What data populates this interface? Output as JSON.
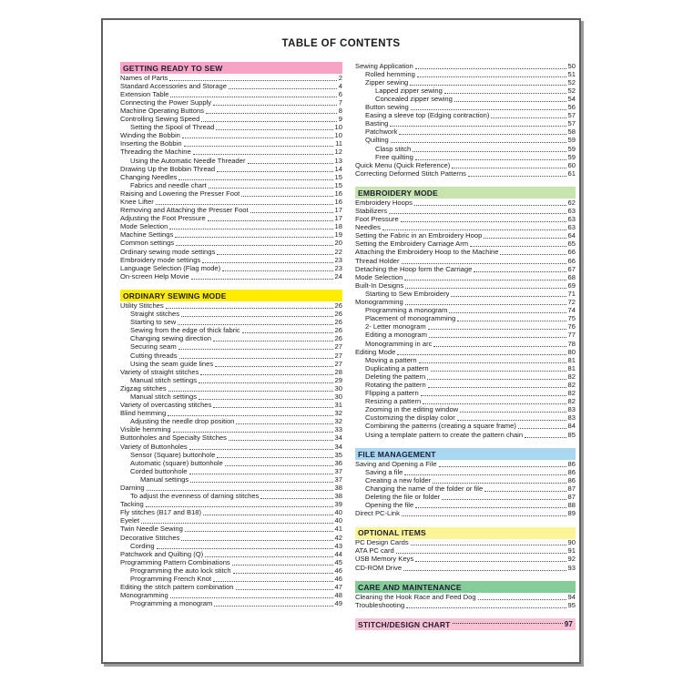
{
  "document": {
    "title": "TABLE OF CONTENTS"
  },
  "toc": {
    "columns": [
      {
        "name": "left",
        "blocks": [
          {
            "header": {
              "label": "GETTING READY TO SEW",
              "color": "#f6a3c4",
              "page": null
            },
            "items": [
              {
                "indent": 0,
                "label": "Names of Parts",
                "page": "2"
              },
              {
                "indent": 0,
                "label": "Standard Accessories and Storage",
                "page": "4"
              },
              {
                "indent": 0,
                "label": "Extension Table",
                "page": "6"
              },
              {
                "indent": 0,
                "label": "Connecting the Power Supply",
                "page": "7"
              },
              {
                "indent": 0,
                "label": "Machine Operating Buttons",
                "page": "8"
              },
              {
                "indent": 0,
                "label": "Controlling Sewing Speed",
                "page": "9"
              },
              {
                "indent": 1,
                "label": "Setting the Spool of Thread",
                "page": "10"
              },
              {
                "indent": 0,
                "label": "Winding the Bobbin",
                "page": "10"
              },
              {
                "indent": 0,
                "label": "Inserting the Bobbin",
                "page": "11"
              },
              {
                "indent": 0,
                "label": "Threading the Machine",
                "page": "12"
              },
              {
                "indent": 1,
                "label": "Using the Automatic Needle Threader",
                "page": "13"
              },
              {
                "indent": 0,
                "label": "Drawing Up the Bobbin Thread",
                "page": "14"
              },
              {
                "indent": 0,
                "label": "Changing Needles",
                "page": "15"
              },
              {
                "indent": 1,
                "label": "Fabrics and needle chart",
                "page": "15"
              },
              {
                "indent": 0,
                "label": "Raising and Lowering the Presser Foot",
                "page": "16"
              },
              {
                "indent": 0,
                "label": "Knee Lifter",
                "page": "16"
              },
              {
                "indent": 0,
                "label": "Removing and Attaching the Presser Foot",
                "page": "17"
              },
              {
                "indent": 0,
                "label": "Adjusting the Foot Pressure",
                "page": "17"
              },
              {
                "indent": 0,
                "label": "Mode Selection",
                "page": "18"
              },
              {
                "indent": 0,
                "label": "Machine Settings",
                "page": "19"
              },
              {
                "indent": 0,
                "label": "Common settings",
                "page": "20"
              },
              {
                "indent": 0,
                "label": "Ordinary sewing mode settings",
                "page": "22"
              },
              {
                "indent": 0,
                "label": "Embroidery mode settings",
                "page": "23"
              },
              {
                "indent": 0,
                "label": "Language Selection (Flag mode)",
                "page": "23"
              },
              {
                "indent": 0,
                "label": "On-screen Help Movie",
                "page": "24"
              }
            ]
          },
          {
            "header": {
              "label": "ORDINARY SEWING MODE",
              "color": "#ffec00",
              "page": null
            },
            "items": [
              {
                "indent": 0,
                "label": "Utility Stitches",
                "page": "26"
              },
              {
                "indent": 1,
                "label": "Straight stitches",
                "page": "26"
              },
              {
                "indent": 1,
                "label": "Starting to sew",
                "page": "26"
              },
              {
                "indent": 1,
                "label": "Sewing from the edge of thick fabric",
                "page": "26"
              },
              {
                "indent": 1,
                "label": "Changing sewing direction",
                "page": "26"
              },
              {
                "indent": 1,
                "label": "Securing seam",
                "page": "27"
              },
              {
                "indent": 1,
                "label": "Cutting threads",
                "page": "27"
              },
              {
                "indent": 1,
                "label": "Using the seam guide lines",
                "page": "27"
              },
              {
                "indent": 0,
                "label": "Variety of straight stitches",
                "page": "28"
              },
              {
                "indent": 1,
                "label": "Manual stitch settings",
                "page": "29"
              },
              {
                "indent": 0,
                "label": "Zigzag stitches",
                "page": "30"
              },
              {
                "indent": 1,
                "label": "Manual stitch settings",
                "page": "30"
              },
              {
                "indent": 0,
                "label": "Variety of overcasting stitches",
                "page": "31"
              },
              {
                "indent": 0,
                "label": "Blind hemming",
                "page": "32"
              },
              {
                "indent": 1,
                "label": "Adjusting the needle drop position",
                "page": "32"
              },
              {
                "indent": 0,
                "label": "Visible hemming",
                "page": "33"
              },
              {
                "indent": 0,
                "label": "Buttonholes and Specialty Stitches",
                "page": "34"
              },
              {
                "indent": 0,
                "label": "Variety of Buttonholes",
                "page": "34"
              },
              {
                "indent": 1,
                "label": "Sensor (Square) buttonhole",
                "page": "35"
              },
              {
                "indent": 1,
                "label": "Automatic (square) buttonhole",
                "page": "36"
              },
              {
                "indent": 1,
                "label": "Corded buttonhole",
                "page": "37"
              },
              {
                "indent": 2,
                "label": "Manual settings",
                "page": "37"
              },
              {
                "indent": 0,
                "label": "Darning",
                "page": "38"
              },
              {
                "indent": 1,
                "label": "To adjust the evenness of darning stitches",
                "page": "38"
              },
              {
                "indent": 0,
                "label": "Tacking",
                "page": "39"
              },
              {
                "indent": 0,
                "label": "Fly stitches (B17 and B18)",
                "page": "40"
              },
              {
                "indent": 0,
                "label": "Eyelet",
                "page": "40"
              },
              {
                "indent": 0,
                "label": "Twin Needle Sewing",
                "page": "41"
              },
              {
                "indent": 0,
                "label": "Decorative Stitches",
                "page": "42"
              },
              {
                "indent": 1,
                "label": "Cording",
                "page": "43"
              },
              {
                "indent": 0,
                "label": "Patchwork and Quilting (Q)",
                "page": "44"
              },
              {
                "indent": 0,
                "label": "Programming Pattern Combinations",
                "page": "45"
              },
              {
                "indent": 1,
                "label": "Programming the auto lock stitch",
                "page": "46"
              },
              {
                "indent": 1,
                "label": "Programming French Knot",
                "page": "46"
              },
              {
                "indent": 0,
                "label": "Editing the stitch pattern combination",
                "page": "47"
              },
              {
                "indent": 0,
                "label": "Monogramming",
                "page": "48"
              },
              {
                "indent": 1,
                "label": "Programming a monogram",
                "page": "49"
              }
            ]
          }
        ]
      },
      {
        "name": "right",
        "blocks": [
          {
            "header": null,
            "items": [
              {
                "indent": 0,
                "label": "Sewing Application",
                "page": "50"
              },
              {
                "indent": 1,
                "label": "Rolled hemming",
                "page": "51"
              },
              {
                "indent": 1,
                "label": "Zipper sewing",
                "page": "52"
              },
              {
                "indent": 2,
                "label": "Lapped zipper sewing",
                "page": "52"
              },
              {
                "indent": 2,
                "label": "Concealed zipper sewing",
                "page": "54"
              },
              {
                "indent": 1,
                "label": "Button sewing",
                "page": "56"
              },
              {
                "indent": 1,
                "label": "Easing a sleeve top (Edging contraction)",
                "page": "57"
              },
              {
                "indent": 1,
                "label": "Basting",
                "page": "57"
              },
              {
                "indent": 1,
                "label": "Patchwork",
                "page": "58"
              },
              {
                "indent": 1,
                "label": "Quilting",
                "page": "59"
              },
              {
                "indent": 2,
                "label": "Clasp stitch",
                "page": "59"
              },
              {
                "indent": 2,
                "label": "Free quilting",
                "page": "59"
              },
              {
                "indent": 0,
                "label": "Quick Menu (Quick Reference)",
                "page": "60"
              },
              {
                "indent": 0,
                "label": "Correcting Deformed Stitch Patterns",
                "page": "61"
              }
            ]
          },
          {
            "header": {
              "label": "EMBROIDERY MODE",
              "color": "#c7e4ae",
              "page": null
            },
            "items": [
              {
                "indent": 0,
                "label": "Embroidery Hoops",
                "page": "62"
              },
              {
                "indent": 0,
                "label": "Stabilizers",
                "page": "63"
              },
              {
                "indent": 0,
                "label": "Foot Pressure",
                "page": "63"
              },
              {
                "indent": 0,
                "label": "Needles",
                "page": "63"
              },
              {
                "indent": 0,
                "label": "Setting the Fabric in an Embroidery Hoop",
                "page": "64"
              },
              {
                "indent": 0,
                "label": "Setting the Embroidery Carriage Arm",
                "page": "65"
              },
              {
                "indent": 0,
                "label": "Attaching the Embroidery Hoop to the Machine",
                "page": "66"
              },
              {
                "indent": 0,
                "label": "Thread Holder",
                "page": "66"
              },
              {
                "indent": 0,
                "label": "Detaching the Hoop form the Carriage",
                "page": "67"
              },
              {
                "indent": 0,
                "label": "Mode Selection",
                "page": "68"
              },
              {
                "indent": 0,
                "label": "Built-In Designs",
                "page": "69"
              },
              {
                "indent": 1,
                "label": "Starting to Sew Embroidery",
                "page": "71"
              },
              {
                "indent": 0,
                "label": "Monogramming",
                "page": "72"
              },
              {
                "indent": 1,
                "label": "Programming a monogram",
                "page": "74"
              },
              {
                "indent": 1,
                "label": "Placement of monogramming",
                "page": "75"
              },
              {
                "indent": 1,
                "label": "2- Letter monogram",
                "page": "76"
              },
              {
                "indent": 1,
                "label": "Editing a monogram",
                "page": "77"
              },
              {
                "indent": 1,
                "label": "Monogramming in arc",
                "page": "78"
              },
              {
                "indent": 0,
                "label": "Editing Mode",
                "page": "80"
              },
              {
                "indent": 1,
                "label": "Moving a pattern",
                "page": "81"
              },
              {
                "indent": 1,
                "label": "Duplicating a pattern",
                "page": "81"
              },
              {
                "indent": 1,
                "label": "Deleting the pattern",
                "page": "82"
              },
              {
                "indent": 1,
                "label": "Rotating the pattern",
                "page": "82"
              },
              {
                "indent": 1,
                "label": "Flipping a pattern",
                "page": "82"
              },
              {
                "indent": 1,
                "label": "Resizing a pattern",
                "page": "82"
              },
              {
                "indent": 1,
                "label": "Zooming in the editing window",
                "page": "83"
              },
              {
                "indent": 1,
                "label": "Customizing the display color",
                "page": "83"
              },
              {
                "indent": 1,
                "label": "Combining the patterns (creating a square frame)",
                "page": "84"
              },
              {
                "indent": 1,
                "label": "Using a template pattern to create the pattern chain",
                "page": "85"
              }
            ]
          },
          {
            "header": {
              "label": "FILE MANAGEMENT",
              "color": "#a7d7f1",
              "page": null
            },
            "items": [
              {
                "indent": 0,
                "label": "Saving and Opening a File",
                "page": "86"
              },
              {
                "indent": 1,
                "label": "Saving a file",
                "page": "86"
              },
              {
                "indent": 1,
                "label": "Creating a new folder",
                "page": "86"
              },
              {
                "indent": 1,
                "label": "Changing the name of the folder or file",
                "page": "87"
              },
              {
                "indent": 1,
                "label": "Deleting the file or folder",
                "page": "87"
              },
              {
                "indent": 1,
                "label": "Opening the file",
                "page": "88"
              },
              {
                "indent": 0,
                "label": "Direct PC-Link",
                "page": "89"
              }
            ]
          },
          {
            "header": {
              "label": "OPTIONAL ITEMS",
              "color": "#fbf595",
              "page": null
            },
            "items": [
              {
                "indent": 0,
                "label": "PC Design Cards",
                "page": "90"
              },
              {
                "indent": 0,
                "label": "ATA PC card",
                "page": "91"
              },
              {
                "indent": 0,
                "label": "USB Memory Keys",
                "page": "92"
              },
              {
                "indent": 0,
                "label": "CD-ROM Drive",
                "page": "93"
              }
            ]
          },
          {
            "header": {
              "label": "CARE AND MAINTENANCE",
              "color": "#84cd98",
              "page": null
            },
            "items": [
              {
                "indent": 0,
                "label": "Cleaning the Hook Race and Feed Dog",
                "page": "94"
              },
              {
                "indent": 0,
                "label": "Troubleshooting",
                "page": "95"
              }
            ]
          },
          {
            "header": {
              "label": "STITCH/DESIGN CHART",
              "color": "#f7c3d4",
              "page": "97"
            },
            "items": []
          }
        ]
      }
    ]
  }
}
